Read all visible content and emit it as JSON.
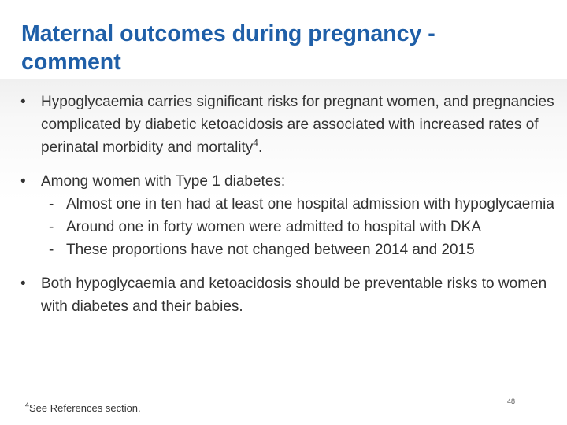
{
  "title": "Maternal outcomes during pregnancy - comment",
  "bullet_symbol": "•",
  "dash_symbol": "-",
  "bullets": [
    {
      "text": "Hypoglycaemia carries significant risks for pregnant women, and pregnancies complicated by diabetic ketoacidosis are associated with increased rates of perinatal morbidity and mortality",
      "sup": "4",
      "suffix": "."
    },
    {
      "text": "Among women with Type 1 diabetes:",
      "subitems": [
        "Almost one in ten had at least one hospital admission with hypoglycaemia",
        "Around one in forty women were admitted to hospital with DKA",
        "These proportions have not changed between 2014 and 2015"
      ]
    },
    {
      "text": "Both hypoglycaemia and ketoacidosis should be preventable risks to women with diabetes and their babies."
    }
  ],
  "footnote": {
    "sup": "4",
    "text": "See References section."
  },
  "page_number": "48",
  "colors": {
    "title": "#1f5fa8",
    "body_text": "#333333"
  }
}
